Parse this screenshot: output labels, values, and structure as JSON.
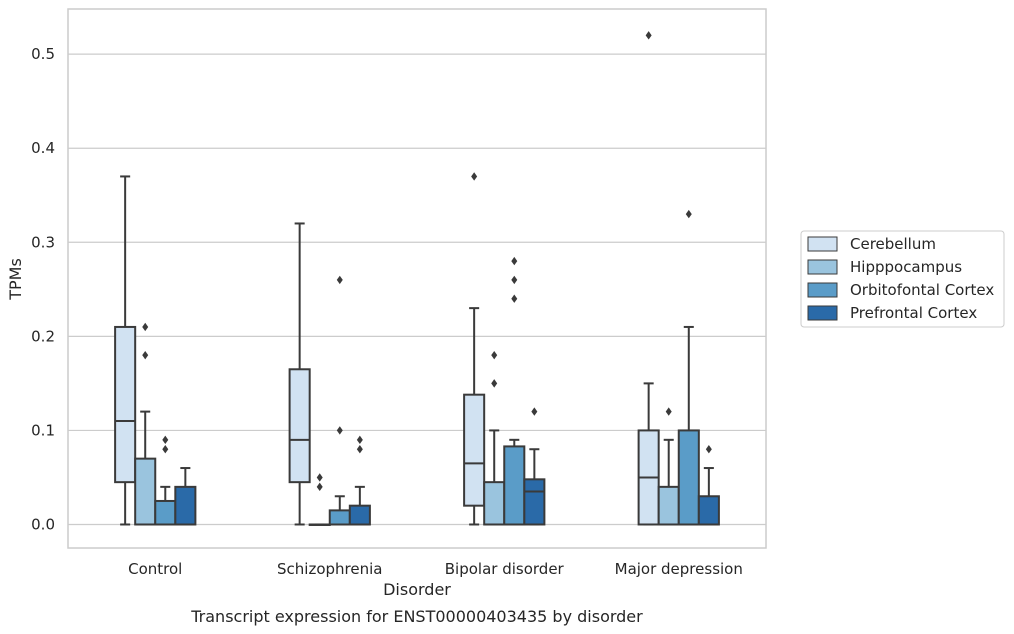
{
  "chart_data": {
    "type": "box",
    "xlabel": "Disorder",
    "ylabel": "TPMs",
    "caption": "Transcript expression for ENST00000403435 by disorder",
    "ylim": [
      -0.025,
      0.548
    ],
    "yticks": [
      "0.0",
      "0.1",
      "0.2",
      "0.3",
      "0.4",
      "0.5"
    ],
    "ytick_values": [
      0.0,
      0.1,
      0.2,
      0.3,
      0.4,
      0.5
    ],
    "grid": true,
    "legend_position": "right",
    "categories": [
      "Control",
      "Schizophrenia",
      "Bipolar disorder",
      "Major depression"
    ],
    "series": [
      {
        "name": "Cerebellum",
        "color": "#d1e2f2",
        "boxes": [
          {
            "whisker_low": 0.0,
            "q1": 0.045,
            "median": 0.11,
            "q3": 0.21,
            "whisker_high": 0.37,
            "outliers": []
          },
          {
            "whisker_low": 0.0,
            "q1": 0.045,
            "median": 0.09,
            "q3": 0.165,
            "whisker_high": 0.32,
            "outliers": []
          },
          {
            "whisker_low": 0.0,
            "q1": 0.02,
            "median": 0.065,
            "q3": 0.138,
            "whisker_high": 0.23,
            "outliers": [
              0.37
            ]
          },
          {
            "whisker_low": 0.0,
            "q1": 0.0,
            "median": 0.05,
            "q3": 0.1,
            "whisker_high": 0.15,
            "outliers": [
              0.52
            ]
          }
        ]
      },
      {
        "name": "Hipppocampus",
        "color": "#9ac4de",
        "boxes": [
          {
            "whisker_low": 0.0,
            "q1": 0.0,
            "median": 0.0,
            "q3": 0.07,
            "whisker_high": 0.12,
            "outliers": [
              0.18,
              0.21
            ]
          },
          {
            "whisker_low": 0.0,
            "q1": 0.0,
            "median": 0.0,
            "q3": 0.0,
            "whisker_high": 0.0,
            "outliers": [
              0.04,
              0.05
            ]
          },
          {
            "whisker_low": 0.0,
            "q1": 0.0,
            "median": 0.0,
            "q3": 0.045,
            "whisker_high": 0.1,
            "outliers": [
              0.15,
              0.18
            ]
          },
          {
            "whisker_low": 0.0,
            "q1": 0.0,
            "median": 0.0,
            "q3": 0.04,
            "whisker_high": 0.09,
            "outliers": [
              0.12
            ]
          }
        ]
      },
      {
        "name": "Orbitofontal Cortex",
        "color": "#5a9cc8",
        "boxes": [
          {
            "whisker_low": 0.0,
            "q1": 0.0,
            "median": 0.0,
            "q3": 0.025,
            "whisker_high": 0.04,
            "outliers": [
              0.08,
              0.09
            ]
          },
          {
            "whisker_low": 0.0,
            "q1": 0.0,
            "median": 0.0,
            "q3": 0.015,
            "whisker_high": 0.03,
            "outliers": [
              0.1,
              0.26
            ]
          },
          {
            "whisker_low": 0.0,
            "q1": 0.0,
            "median": 0.0,
            "q3": 0.083,
            "whisker_high": 0.09,
            "outliers": [
              0.24,
              0.26,
              0.28
            ]
          },
          {
            "whisker_low": 0.0,
            "q1": 0.0,
            "median": 0.0,
            "q3": 0.1,
            "whisker_high": 0.21,
            "outliers": [
              0.33
            ]
          }
        ]
      },
      {
        "name": "Prefrontal Cortex",
        "color": "#2a6aa8",
        "boxes": [
          {
            "whisker_low": 0.0,
            "q1": 0.0,
            "median": 0.0,
            "q3": 0.04,
            "whisker_high": 0.06,
            "outliers": []
          },
          {
            "whisker_low": 0.0,
            "q1": 0.0,
            "median": 0.0,
            "q3": 0.02,
            "whisker_high": 0.04,
            "outliers": [
              0.08,
              0.09
            ]
          },
          {
            "whisker_low": 0.0,
            "q1": 0.0,
            "median": 0.035,
            "q3": 0.048,
            "whisker_high": 0.08,
            "outliers": [
              0.12
            ]
          },
          {
            "whisker_low": 0.0,
            "q1": 0.0,
            "median": 0.0,
            "q3": 0.03,
            "whisker_high": 0.06,
            "outliers": [
              0.08
            ]
          }
        ]
      }
    ]
  }
}
